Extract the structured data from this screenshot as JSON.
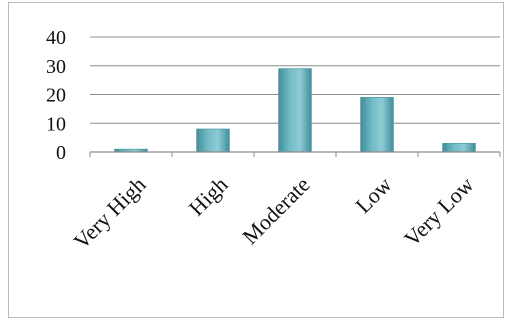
{
  "chart_data": {
    "type": "bar",
    "categories": [
      "Very High",
      "High",
      "Moderate",
      "Low",
      "Very Low"
    ],
    "values": [
      1,
      8,
      29,
      19,
      3
    ],
    "ylim": [
      0,
      40
    ],
    "yticks": [
      0,
      10,
      20,
      30,
      40
    ],
    "grid": true,
    "legend": "none",
    "colors": {
      "bar": "#5aa9b6",
      "bar_light": "#8fcbd4",
      "bar_dark": "#3f8e9b",
      "grid": "#8c8c8c"
    }
  }
}
